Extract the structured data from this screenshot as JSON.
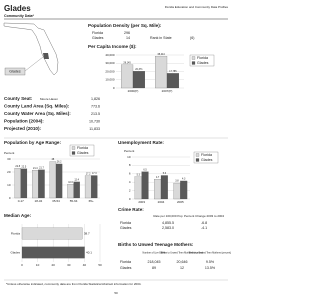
{
  "header": {
    "title": "Glades",
    "source": "Florida Education and Community Data Profiles",
    "subtitle": "Community Data*"
  },
  "map": {
    "label": "Glades"
  },
  "density": {
    "title": "Population Density (per Sq. Mile):",
    "rows": [
      [
        "Florida",
        "296",
        "",
        ""
      ],
      [
        "Glades",
        "14",
        "Rank in State",
        "(6)"
      ]
    ]
  },
  "facts": {
    "rows": [
      [
        "County Seat:",
        "Moore Haven",
        "1,826"
      ],
      [
        "County Land Area (Sq. Miles):",
        "",
        "773.6"
      ],
      [
        "County Water Area (Sq. Miles):",
        "",
        "213.5"
      ],
      [
        "Population (2004):",
        "",
        "10,730"
      ],
      [
        "Projected (2010):",
        "",
        "11,833"
      ]
    ]
  },
  "crime": {
    "title": "Crime Rate:",
    "headers": [
      "Rate per 100,000 Pop",
      "Percent Change 2003 to 2004"
    ],
    "rows": [
      [
        "Florida",
        "4,855.5",
        "-6.8"
      ],
      [
        "Glades",
        "2,583.0",
        "-4.1"
      ]
    ]
  },
  "births": {
    "title": "Births to Unwed Teenage Mothers:",
    "headers": [
      "Number of Live Births",
      "Births to Unwed Teen Mothers (number)",
      "Births to Unwed Teen Mothers (percent)"
    ],
    "rows": [
      [
        "Florida",
        "218,045",
        "20,646",
        "9.5%"
      ],
      [
        "Glades",
        "89",
        "12",
        "13.5%"
      ]
    ]
  },
  "footer": {
    "note": "*Unless otherwise indicated, community data are from Florida Statistical Abstract information for 2004.",
    "page": "50"
  },
  "chart_data": [
    {
      "type": "bar",
      "title": "Per Capita Income ($):",
      "categories": [
        "2000(P)",
        "2007(P)"
      ],
      "series": [
        {
          "name": "Florida",
          "color": "#d9d9d9",
          "values": [
            28145,
            38444
          ],
          "value_labels": [
            "28,145",
            "38,444"
          ]
        },
        {
          "name": "Glades",
          "color": "#595959",
          "values": [
            20371,
            17785
          ],
          "value_labels": [
            "20,371",
            "17,785"
          ]
        }
      ],
      "ylim": [
        0,
        40000
      ],
      "yticks": [
        0,
        {
          "value": 10000,
          "label": "10,000"
        },
        {
          "value": 20000,
          "label": "20,000"
        },
        {
          "value": 30000,
          "label": "30,000"
        },
        {
          "value": 40000,
          "label": "40,000"
        }
      ]
    },
    {
      "type": "bar",
      "title": "Unemployment Rate:",
      "y_label": "Percent",
      "categories": [
        "2003",
        "2004",
        "2005"
      ],
      "series": [
        {
          "name": "Florida",
          "color": "#d9d9d9",
          "values": [
            5.3,
            4.7,
            3.8
          ]
        },
        {
          "name": "Glades",
          "color": "#595959",
          "values": [
            6.5,
            5.6,
            4.3
          ]
        }
      ],
      "ylim": [
        0,
        10
      ],
      "yticks": [
        0,
        2,
        4,
        6,
        8,
        10
      ]
    },
    {
      "type": "bar",
      "title": "Population by Age Range:",
      "y_label": "Percent",
      "categories": [
        "0-17",
        "18-34",
        "35-54",
        "55-64",
        "65+"
      ],
      "series": [
        {
          "name": "Florida",
          "color": "#d9d9d9",
          "values": [
            22.8,
            21.4,
            28.0,
            10.6,
            17.2
          ]
        },
        {
          "name": "Glades",
          "color": "#595959",
          "values": [
            22.5,
            21.7,
            26.2,
            12.4,
            17.3
          ]
        }
      ],
      "ylim": [
        0,
        30
      ],
      "yticks": [
        0,
        10,
        20,
        30
      ]
    },
    {
      "type": "hbar",
      "title": "Median Age:",
      "categories": [
        "Florida",
        "Glades"
      ],
      "values": [
        38.7,
        40.1
      ],
      "colors": [
        "#d9d9d9",
        "#595959"
      ],
      "xlim": [
        0,
        50
      ],
      "xticks": [
        0,
        10,
        20,
        30,
        40,
        50
      ]
    }
  ]
}
